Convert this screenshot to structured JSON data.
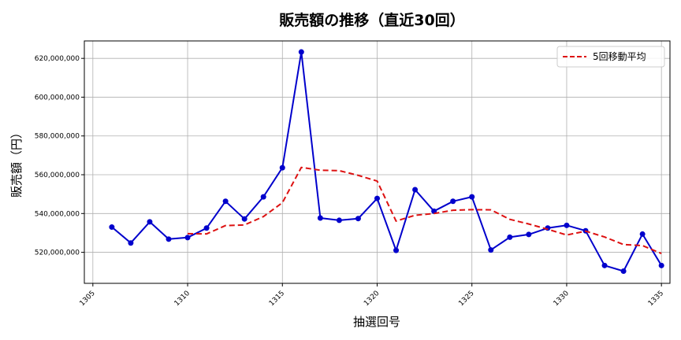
{
  "chart_data": {
    "type": "line",
    "title": "販売額の推移（直近30回）",
    "xlabel": "抽選回号",
    "ylabel": "販売額（円）",
    "xlim": [
      1304.55,
      1335.45
    ],
    "ylim": [
      504000000,
      629000000
    ],
    "x_ticks": [
      1305,
      1310,
      1315,
      1320,
      1325,
      1330,
      1335
    ],
    "y_ticks": [
      {
        "value": 520000000,
        "label": "520,000,000"
      },
      {
        "value": 540000000,
        "label": "540,000,000"
      },
      {
        "value": 560000000,
        "label": "560,000,000"
      },
      {
        "value": 580000000,
        "label": "580,000,000"
      },
      {
        "value": 600000000,
        "label": "600,000,000"
      },
      {
        "value": 620000000,
        "label": "620,000,000"
      }
    ],
    "grid": true,
    "legend_position": "top-right",
    "x": [
      1306,
      1307,
      1308,
      1309,
      1310,
      1311,
      1312,
      1313,
      1314,
      1315,
      1316,
      1317,
      1318,
      1319,
      1320,
      1321,
      1322,
      1323,
      1324,
      1325,
      1326,
      1327,
      1328,
      1329,
      1330,
      1331,
      1332,
      1333,
      1334,
      1335
    ],
    "series": [
      {
        "name": "",
        "color": "#0000cc",
        "style": "solid",
        "markers": true,
        "values": [
          533000000,
          524800000,
          535700000,
          526800000,
          527600000,
          532500000,
          546300000,
          537200000,
          548600000,
          563600000,
          623300000,
          537700000,
          536500000,
          537400000,
          547800000,
          521000000,
          552300000,
          541200000,
          546300000,
          548600000,
          521200000,
          527800000,
          529200000,
          532500000,
          533900000,
          531100000,
          513200000,
          510300000,
          529400000,
          513200000
        ]
      },
      {
        "name": "5回移動平均",
        "color": "#dd1111",
        "style": "dashed",
        "markers": false,
        "values": [
          null,
          null,
          null,
          null,
          529600000,
          529500000,
          533800000,
          534100000,
          538400000,
          545600000,
          563800000,
          562300000,
          562100000,
          559700000,
          556700000,
          536100000,
          539100000,
          540000000,
          541700000,
          542000000,
          541900000,
          537000000,
          534600000,
          531900000,
          528900000,
          530900000,
          527900000,
          524000000,
          523500000,
          519400000
        ]
      }
    ]
  }
}
